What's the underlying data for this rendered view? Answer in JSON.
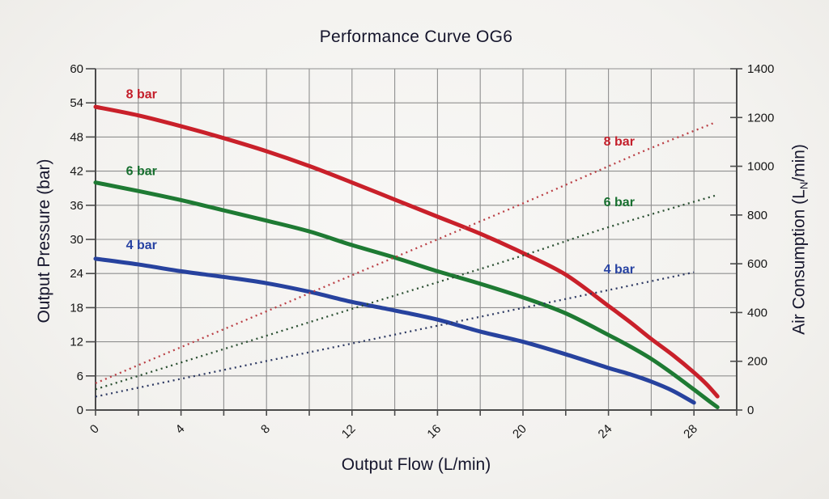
{
  "chart_data": {
    "type": "line",
    "title": "Performance Curve OG6",
    "x_axis": {
      "label": "Output Flow (L/min)",
      "min": 0,
      "max": 30,
      "grid_step": 2,
      "ticks": [
        0,
        4,
        8,
        12,
        16,
        20,
        24,
        28
      ],
      "tick_labels": [
        "0",
        "4",
        "8",
        "12",
        "16",
        "20",
        "24",
        "28"
      ]
    },
    "y_left": {
      "label": "Output Pressure (bar)",
      "min": 0,
      "max": 60,
      "step": 6,
      "tick_labels": [
        "0",
        "6",
        "12",
        "18",
        "24",
        "30",
        "36",
        "42",
        "48",
        "54",
        "60"
      ]
    },
    "y_right": {
      "label_prefix": "Air Consumption (L",
      "label_sub": "N",
      "label_suffix": "/min)",
      "min": 0,
      "max": 1400,
      "step": 200,
      "tick_labels": [
        "0",
        "200",
        "400",
        "600",
        "800",
        "1000",
        "1200",
        "1400"
      ]
    },
    "style": {
      "grid_color": "#8f8f8f",
      "axis_color": "#4b4b4b",
      "tick_label_color": "#161616",
      "solid_width": 5,
      "dotted_width": 2.3,
      "dotted_dash": "2 4.5"
    },
    "series": [
      {
        "id": "pressure-8bar",
        "name": "8 bar output pressure",
        "axis": "left",
        "style": "solid",
        "color": "#c9202a",
        "label": {
          "text": "8 bar",
          "x": 2.15,
          "y": 55.5,
          "color": "#c41f2b"
        },
        "points": [
          [
            0,
            53.3
          ],
          [
            2,
            51.8
          ],
          [
            4,
            49.9
          ],
          [
            6,
            47.8
          ],
          [
            8,
            45.5
          ],
          [
            10,
            42.9
          ],
          [
            12,
            40
          ],
          [
            14,
            37
          ],
          [
            16,
            34
          ],
          [
            18,
            31
          ],
          [
            20,
            27.6
          ],
          [
            22,
            23.8
          ],
          [
            24,
            18.3
          ],
          [
            25,
            15.5
          ],
          [
            26,
            12.5
          ],
          [
            27,
            9.7
          ],
          [
            28,
            6.6
          ],
          [
            28.6,
            4.5
          ],
          [
            29.1,
            2.4
          ]
        ]
      },
      {
        "id": "pressure-6bar",
        "name": "6 bar output pressure",
        "axis": "left",
        "style": "solid",
        "color": "#1e7a33",
        "label": {
          "text": "6 bar",
          "x": 2.15,
          "y": 42.0,
          "color": "#176f2f"
        },
        "points": [
          [
            0,
            40
          ],
          [
            2,
            38.5
          ],
          [
            4,
            36.9
          ],
          [
            6,
            35.1
          ],
          [
            8,
            33.3
          ],
          [
            10,
            31.4
          ],
          [
            12,
            29
          ],
          [
            14,
            26.8
          ],
          [
            16,
            24.4
          ],
          [
            18,
            22.2
          ],
          [
            20,
            19.8
          ],
          [
            22,
            17
          ],
          [
            24,
            13.2
          ],
          [
            25,
            11.2
          ],
          [
            26,
            9
          ],
          [
            27,
            6.4
          ],
          [
            28,
            3.6
          ],
          [
            28.7,
            1.6
          ],
          [
            29.1,
            0.5
          ]
        ]
      },
      {
        "id": "pressure-4bar",
        "name": "4 bar output pressure",
        "axis": "left",
        "style": "solid",
        "color": "#27429e",
        "label": {
          "text": "4 bar",
          "x": 2.15,
          "y": 29.0,
          "color": "#2742a2"
        },
        "points": [
          [
            0,
            26.6
          ],
          [
            2,
            25.6
          ],
          [
            4,
            24.4
          ],
          [
            6,
            23.4
          ],
          [
            8,
            22.3
          ],
          [
            10,
            20.8
          ],
          [
            12,
            19
          ],
          [
            14,
            17.5
          ],
          [
            16,
            15.9
          ],
          [
            18,
            13.8
          ],
          [
            20,
            12
          ],
          [
            22,
            9.8
          ],
          [
            24,
            7.4
          ],
          [
            25,
            6.3
          ],
          [
            26,
            5
          ],
          [
            27,
            3.4
          ],
          [
            28,
            1.3
          ]
        ]
      },
      {
        "id": "air-8bar",
        "name": "8 bar air consumption",
        "axis": "right",
        "style": "dotted",
        "color": "#bb4046",
        "label": {
          "text": "8 bar",
          "x": 24.5,
          "y": 1101,
          "color": "#c41f2b"
        },
        "points": [
          [
            0,
            110
          ],
          [
            4,
            258
          ],
          [
            8,
            405
          ],
          [
            12,
            553
          ],
          [
            16,
            700
          ],
          [
            20,
            848
          ],
          [
            24,
            1000
          ],
          [
            26,
            1075
          ],
          [
            29,
            1180
          ]
        ]
      },
      {
        "id": "air-6bar",
        "name": "6 bar air consumption",
        "axis": "right",
        "style": "dotted",
        "color": "#2a4f31",
        "label": {
          "text": "6 bar",
          "x": 24.5,
          "y": 853,
          "color": "#176f2f"
        },
        "points": [
          [
            0,
            85
          ],
          [
            4,
            195
          ],
          [
            8,
            305
          ],
          [
            12,
            415
          ],
          [
            16,
            524
          ],
          [
            20,
            634
          ],
          [
            24,
            750
          ],
          [
            29,
            880
          ]
        ]
      },
      {
        "id": "air-4bar",
        "name": "4 bar air consumption",
        "axis": "right",
        "style": "dotted",
        "color": "#2e3a63",
        "label": {
          "text": "4 bar",
          "x": 24.5,
          "y": 577,
          "color": "#2742a2"
        },
        "points": [
          [
            0,
            55
          ],
          [
            4,
            128
          ],
          [
            8,
            201
          ],
          [
            12,
            273
          ],
          [
            16,
            346
          ],
          [
            20,
            419
          ],
          [
            24,
            492
          ],
          [
            28,
            565
          ]
        ]
      }
    ]
  }
}
